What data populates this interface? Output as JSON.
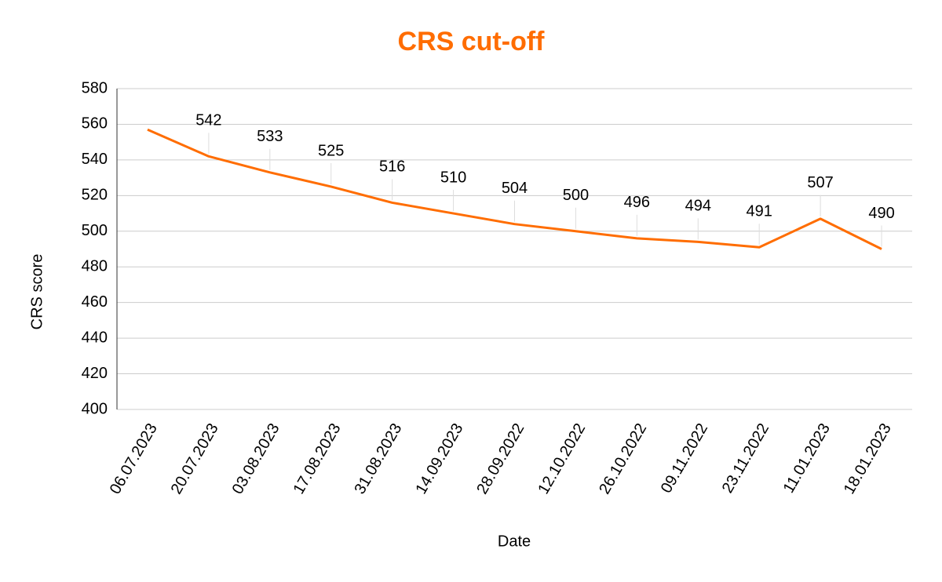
{
  "chart_data": {
    "type": "line",
    "title": "CRS cut-off",
    "x_label": "Date",
    "y_label": "CRS score",
    "categories": [
      "06.07.2023",
      "20.07.2023",
      "03.08.2023",
      "17.08.2023",
      "31.08.2023",
      "14.09.2023",
      "28.09.2022",
      "12.10.2022",
      "26.10.2022",
      "09.11.2022",
      "23.11.2022",
      "11.01.2023",
      "18.01.2023"
    ],
    "values": [
      557,
      542,
      533,
      525,
      516,
      510,
      504,
      500,
      496,
      494,
      491,
      507,
      490
    ],
    "value_labels": [
      null,
      "542",
      "533",
      "525",
      "516",
      "510",
      "504",
      "500",
      "496",
      "494",
      "491",
      "507",
      "490"
    ],
    "color": "#ff6d01",
    "title_color": "#ff6d01",
    "ylim": [
      400,
      580
    ],
    "yticks": [
      400,
      420,
      440,
      460,
      480,
      500,
      520,
      540,
      560,
      580
    ],
    "grid": true
  }
}
